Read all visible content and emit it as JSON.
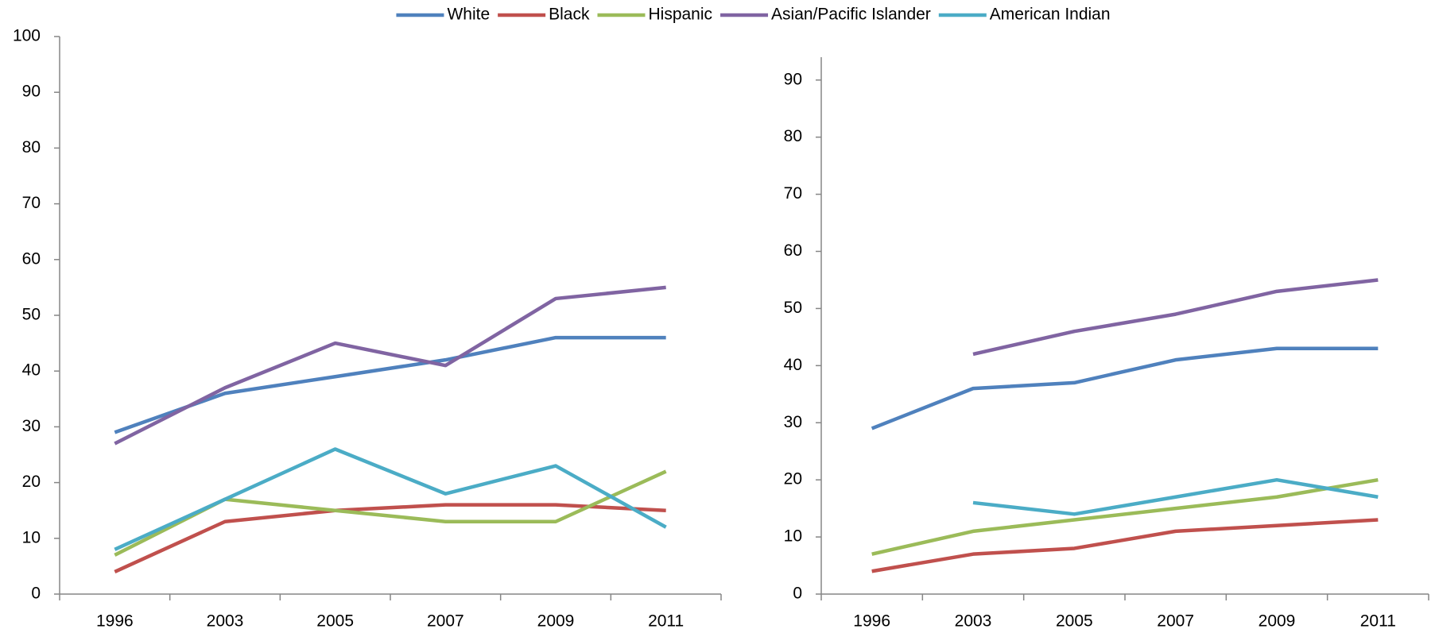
{
  "chart_data": [
    {
      "type": "line",
      "categories": [
        "1996",
        "2003",
        "2005",
        "2007",
        "2009",
        "2011"
      ],
      "ylim": [
        0,
        100
      ],
      "yticks": [
        0,
        10,
        20,
        30,
        40,
        50,
        60,
        70,
        80,
        90,
        100
      ],
      "legend": "top",
      "series": [
        {
          "name": "White",
          "color": "#4f81bd",
          "values": [
            29,
            36,
            39,
            42,
            46,
            46
          ]
        },
        {
          "name": "Black",
          "color": "#c0504d",
          "values": [
            4,
            13,
            15,
            16,
            16,
            15
          ]
        },
        {
          "name": "Hispanic",
          "color": "#9bbb59",
          "values": [
            7,
            17,
            15,
            13,
            13,
            22
          ]
        },
        {
          "name": "Asian/Pacific Islander",
          "color": "#8064a2",
          "values": [
            27,
            37,
            45,
            41,
            53,
            55
          ]
        },
        {
          "name": "American Indian",
          "color": "#4bacc6",
          "values": [
            8,
            17,
            26,
            18,
            23,
            12
          ]
        }
      ]
    },
    {
      "type": "line",
      "categories": [
        "1996",
        "2003",
        "2005",
        "2007",
        "2009",
        "2011"
      ],
      "ylim": [
        0,
        94
      ],
      "yticks": [
        0,
        10,
        20,
        30,
        40,
        50,
        60,
        70,
        80,
        90
      ],
      "series": [
        {
          "color": "#4f81bd",
          "values": [
            29,
            36,
            37,
            41,
            43,
            43
          ]
        },
        {
          "color": "#c0504d",
          "values": [
            4,
            7,
            8,
            11,
            12,
            13
          ]
        },
        {
          "color": "#9bbb59",
          "values": [
            7,
            11,
            13,
            15,
            17,
            20
          ]
        },
        {
          "color": "#8064a2",
          "values": [
            null,
            42,
            46,
            49,
            53,
            55
          ]
        },
        {
          "color": "#4bacc6",
          "values": [
            null,
            16,
            14,
            17,
            20,
            17
          ]
        }
      ]
    }
  ]
}
